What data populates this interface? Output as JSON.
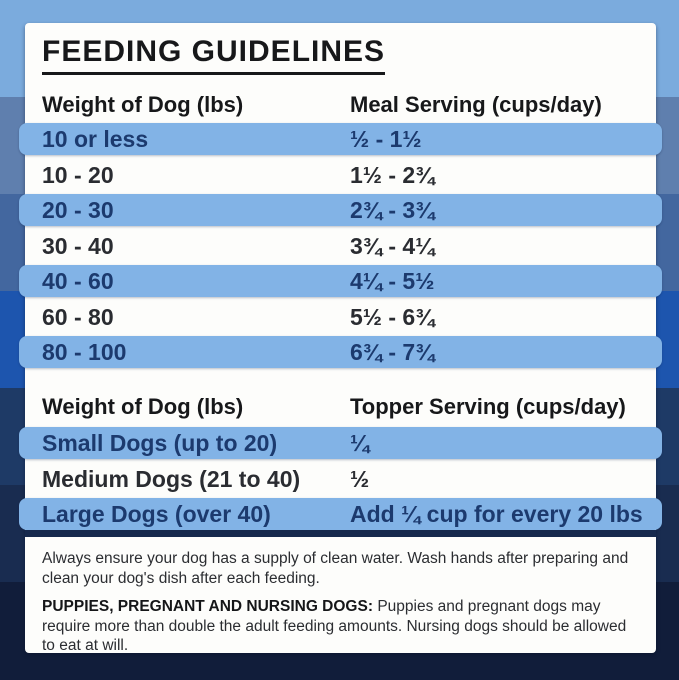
{
  "title": "FEEDING GUIDELINES",
  "meal_table": {
    "col1_header": "Weight of Dog (lbs)",
    "col2_header": "Meal Serving (cups/day)",
    "rows": [
      {
        "weight": "10 or less",
        "serving": "½ - 1½"
      },
      {
        "weight": "10 - 20",
        "serving": "1½ - 2¾"
      },
      {
        "weight": "20 - 30",
        "serving": "2¾ - 3¾"
      },
      {
        "weight": "30 - 40",
        "serving": "3¾ - 4¼"
      },
      {
        "weight": "40 - 60",
        "serving": "4¼ - 5½"
      },
      {
        "weight": "60 - 80",
        "serving": "5½ - 6¾"
      },
      {
        "weight": "80 - 100",
        "serving": "6¾ - 7¾"
      }
    ]
  },
  "topper_table": {
    "col1_header": "Weight of Dog (lbs)",
    "col2_header": "Topper Serving (cups/day)",
    "rows": [
      {
        "weight": "Small Dogs (up to 20)",
        "serving": "¼"
      },
      {
        "weight": "Medium Dogs (21 to 40)",
        "serving": "½"
      },
      {
        "weight": "Large Dogs (over 40)",
        "serving": "Add ¼ cup for every 20 lbs"
      }
    ]
  },
  "notes": {
    "water": "Always ensure your dog has a supply of clean water. Wash hands after preparing and clean your dog's dish after each feeding.",
    "special_label": "PUPPIES, PREGNANT AND NURSING DOGS:",
    "special_text": "Puppies and pregnant dogs may require more than double the adult feeding amounts. Nursing dogs should be allowed to eat at will."
  },
  "colors": {
    "card_bg": "#fdfdfb",
    "heading_text": "#17181a",
    "row_highlight": "#82b3e6",
    "row_highlight_text": "#1c3a6e",
    "row_text": "#2a2c31",
    "divider": "#16294d",
    "note_text": "#2b2d31"
  },
  "background": {
    "stripes": [
      "#7babdd",
      "#5f7fae",
      "#43679f",
      "#1d55ae",
      "#1e3a66",
      "#192c50",
      "#111d3a"
    ]
  }
}
